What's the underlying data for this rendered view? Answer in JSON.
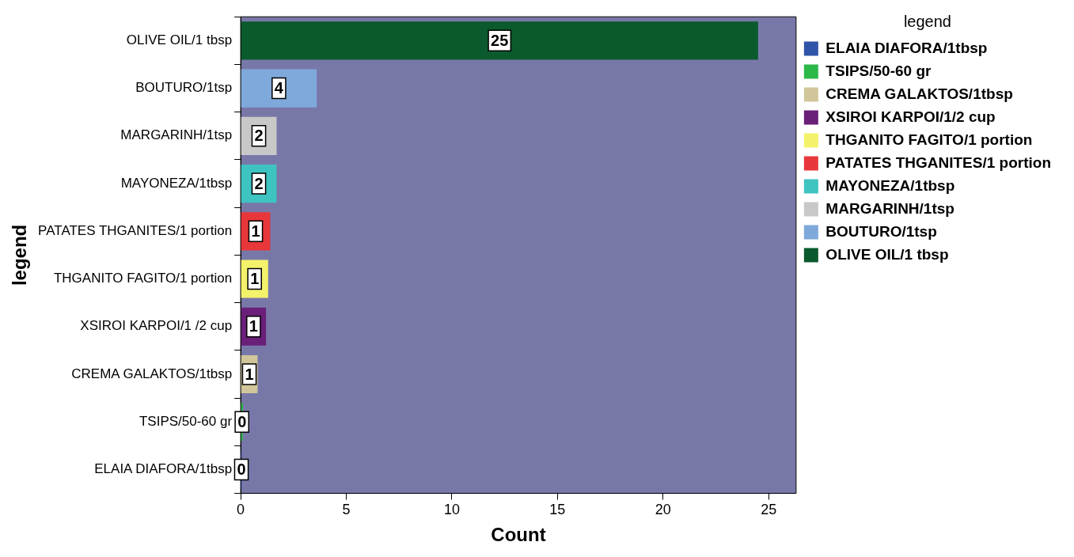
{
  "chart_data": {
    "type": "bar",
    "orientation": "horizontal",
    "xlabel": "Count",
    "ylabel": "legend",
    "legend_title": "legend",
    "legend": "right",
    "categories": [
      "OLIVE OIL/1 tbsp",
      "BOUTURO/1tsp",
      "MARGARINH/1tsp",
      "MAYONEZA/1tbsp",
      "PATATES THGANITES/1 portion",
      "THGANITO FAGITO/1 portion",
      "XSIROI KARPOI/1 /2 cup",
      "CREMA GALAKTOS/1tbsp",
      "TSIPS/50-60 gr",
      "ELAIA DIAFORA/1tbsp"
    ],
    "series": [
      {
        "name": "ELAIA DIAFORA/1tbsp",
        "color": "#3054a8",
        "values": [
          null,
          null,
          null,
          null,
          null,
          null,
          null,
          null,
          null,
          0.05
        ],
        "value_labels": [
          null,
          null,
          null,
          null,
          null,
          null,
          null,
          null,
          null,
          "0"
        ]
      },
      {
        "name": "TSIPS/50-60 gr",
        "color": "#2db84a",
        "values": [
          null,
          null,
          null,
          null,
          null,
          null,
          null,
          null,
          0.1,
          null
        ],
        "value_labels": [
          null,
          null,
          null,
          null,
          null,
          null,
          null,
          null,
          "0",
          null
        ]
      },
      {
        "name": "CREMA GALAKTOS/1tbsp",
        "color": "#d1c69a",
        "values": [
          null,
          null,
          null,
          null,
          null,
          null,
          null,
          0.8,
          null,
          null
        ],
        "value_labels": [
          null,
          null,
          null,
          null,
          null,
          null,
          null,
          "1",
          null,
          null
        ]
      },
      {
        "name": "XSIROI KARPOI/1/2 cup",
        "color": "#6a1f78",
        "values": [
          null,
          null,
          null,
          null,
          null,
          null,
          1.2,
          null,
          null,
          null
        ],
        "value_labels": [
          null,
          null,
          null,
          null,
          null,
          null,
          "1",
          null,
          null,
          null
        ]
      },
      {
        "name": "THGANITO FAGITO/1 portion",
        "color": "#f4f26a",
        "values": [
          null,
          null,
          null,
          null,
          null,
          1.3,
          null,
          null,
          null,
          null
        ],
        "value_labels": [
          null,
          null,
          null,
          null,
          null,
          "1",
          null,
          null,
          null,
          null
        ]
      },
      {
        "name": "PATATES THGANITES/1 portion",
        "color": "#e8373a",
        "values": [
          null,
          null,
          null,
          null,
          1.4,
          null,
          null,
          null,
          null,
          null
        ],
        "value_labels": [
          null,
          null,
          null,
          null,
          "1",
          null,
          null,
          null,
          null,
          null
        ]
      },
      {
        "name": "MAYONEZA/1tbsp",
        "color": "#3ec3c1",
        "values": [
          null,
          null,
          null,
          1.7,
          null,
          null,
          null,
          null,
          null,
          null
        ],
        "value_labels": [
          null,
          null,
          null,
          "2",
          null,
          null,
          null,
          null,
          null,
          null
        ]
      },
      {
        "name": "MARGARINH/1tsp",
        "color": "#c8c8c8",
        "values": [
          null,
          null,
          1.7,
          null,
          null,
          null,
          null,
          null,
          null,
          null
        ],
        "value_labels": [
          null,
          null,
          "2",
          null,
          null,
          null,
          null,
          null,
          null,
          null
        ]
      },
      {
        "name": "BOUTURO/1tsp",
        "color": "#7fa9db",
        "values": [
          null,
          3.6,
          null,
          null,
          null,
          null,
          null,
          null,
          null,
          null
        ],
        "value_labels": [
          null,
          "4",
          null,
          null,
          null,
          null,
          null,
          null,
          null,
          null
        ]
      },
      {
        "name": "OLIVE OIL/1 tbsp",
        "color": "#0b5a2e",
        "values": [
          24.5,
          null,
          null,
          null,
          null,
          null,
          null,
          null,
          null,
          null
        ],
        "value_labels": [
          "25",
          null,
          null,
          null,
          null,
          null,
          null,
          null,
          null,
          null
        ]
      }
    ],
    "xlim": [
      0,
      26.3
    ],
    "xticks": [
      0,
      5,
      10,
      15,
      20,
      25
    ],
    "grid": false
  }
}
